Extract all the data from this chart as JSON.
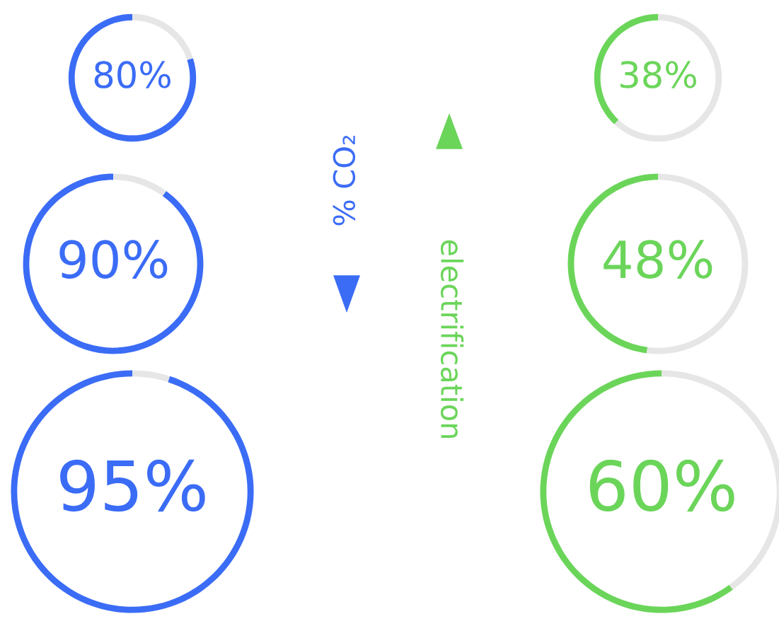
{
  "chart_data": [
    {
      "type": "donut",
      "categories": [
        null,
        null
      ],
      "values": [
        80,
        20
      ],
      "colors": [
        "#3b6cf6",
        "#e6e6e6"
      ],
      "value_labels": [
        "80%",
        null
      ]
    },
    {
      "type": "donut",
      "categories": [
        null,
        null
      ],
      "values": [
        38,
        62
      ],
      "colors": [
        "#6bd55a",
        "#e6e6e6"
      ],
      "value_labels": [
        "38%",
        null
      ]
    },
    {
      "type": "donut",
      "categories": [
        null,
        null
      ],
      "values": [
        90,
        10
      ],
      "colors": [
        "#3b6cf6",
        "#e6e6e6"
      ],
      "value_labels": [
        "90%",
        null
      ]
    },
    {
      "type": "donut",
      "categories": [
        null,
        null
      ],
      "values": [
        48,
        52
      ],
      "colors": [
        "#6bd55a",
        "#e6e6e6"
      ],
      "value_labels": [
        "48%",
        null
      ]
    },
    {
      "type": "donut",
      "categories": [
        null,
        null
      ],
      "values": [
        95,
        5
      ],
      "colors": [
        "#3b6cf6",
        "#e6e6e6"
      ],
      "value_labels": [
        "95%",
        null
      ]
    },
    {
      "type": "donut",
      "categories": [
        null,
        null
      ],
      "values": [
        60,
        40
      ],
      "colors": [
        "#6bd55a",
        "#e6e6e6"
      ],
      "value_labels": [
        "60%",
        null
      ]
    },
    {
      "type": "other",
      "annotations": [
        "% CO₂",
        "electrification"
      ],
      "colors": [
        "#3b6cf6",
        "#6bd55a"
      ]
    }
  ]
}
